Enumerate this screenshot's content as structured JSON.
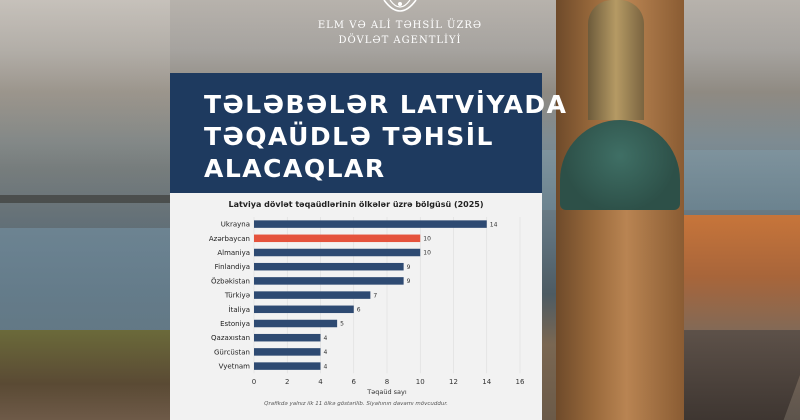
{
  "header": {
    "agency_line1": "ELM VƏ ALİ TƏHSİL ÜZRƏ",
    "agency_line2": "DÖVLƏT AGENTLİYİ"
  },
  "headline": {
    "line1": "TƏLƏBƏLƏR LATVİYADA",
    "line2": "TƏQAÜDLƏ TƏHSİL",
    "line3": "ALACAQLAR"
  },
  "colors": {
    "title_bg": "#1e3a5f",
    "bar": "#2e4a72",
    "highlight": "#e5533d"
  },
  "chart_data": {
    "type": "bar",
    "orientation": "horizontal",
    "title": "Latviya dövlət təqaüdlərinin ölkələr üzrə bölgüsü (2025)",
    "xlabel": "Təqaüd sayı",
    "ylabel": "",
    "xlim": [
      0,
      16
    ],
    "xticks": [
      0,
      2,
      4,
      6,
      8,
      10,
      12,
      14,
      16
    ],
    "grid": true,
    "categories": [
      "Ukrayna",
      "Azərbaycan",
      "Almaniya",
      "Finlandiya",
      "Özbəkistan",
      "Türkiyə",
      "İtaliya",
      "Estoniya",
      "Qazaxıstan",
      "Gürcüstan",
      "Vyetnam"
    ],
    "values": [
      14,
      10,
      10,
      9,
      9,
      7,
      6,
      5,
      4,
      4,
      4
    ],
    "highlight_category": "Azərbaycan",
    "note": "Qrafikdə yalnız ilk 11 ölkə göstərilib. Siyahının davamı mövcuddur."
  }
}
